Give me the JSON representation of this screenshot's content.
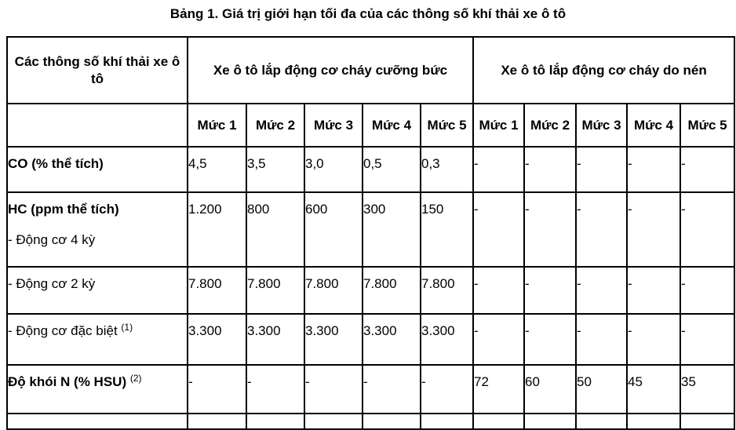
{
  "title": "Bảng 1. Giá trị giới hạn tối đa của các thông số khí thải xe ô tô",
  "header": {
    "param_col": "Các thông số khí thải xe ô tô",
    "group1": "Xe ô tô lắp động cơ cháy cưỡng bức",
    "group2": "Xe ô tô lắp động cơ cháy do nén",
    "levels": [
      "Mức 1",
      "Mức 2",
      "Mức 3",
      "Mức 4",
      "Mức 5",
      "Mức 1",
      "Mức 2",
      "Mức 3",
      "Mức 4",
      "Mức 5"
    ]
  },
  "rows": [
    {
      "label": "CO (% thể tích)",
      "values": [
        "4,5",
        "3,5",
        "3,0",
        "0,5",
        "0,3",
        "-",
        "-",
        "-",
        "-",
        "-"
      ]
    },
    {
      "label": "HC (ppm thể tích)",
      "sublabel": "- Động cơ 4 kỳ",
      "values": [
        "1.200",
        "800",
        "600",
        "300",
        "150",
        "-",
        "-",
        "-",
        "-",
        "-"
      ]
    },
    {
      "label": "- Động cơ 2 kỳ",
      "values": [
        "7.800",
        "7.800",
        "7.800",
        "7.800",
        "7.800",
        "-",
        "-",
        "-",
        "-",
        "-"
      ]
    },
    {
      "label": "- Động cơ đặc biệt",
      "note": "(1)",
      "values": [
        "3.300",
        "3.300",
        "3.300",
        "3.300",
        "3.300",
        "-",
        "-",
        "-",
        "-",
        "-"
      ]
    },
    {
      "label": "Độ khói N (% HSU)",
      "note": "(2)",
      "values": [
        "-",
        "-",
        "-",
        "-",
        "-",
        "72",
        "60",
        "50",
        "45",
        "35"
      ]
    }
  ]
}
